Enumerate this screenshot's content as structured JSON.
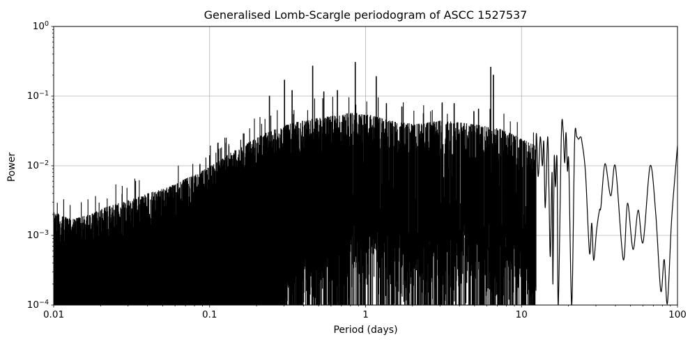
{
  "chart_data": {
    "type": "line",
    "title": "Generalised Lomb-Scargle periodogram of ASCC 1527537",
    "xlabel": "Period (days)",
    "ylabel": "Power",
    "xscale": "log",
    "yscale": "log",
    "xlim": [
      0.01,
      100
    ],
    "ylim": [
      0.0001,
      1.0
    ],
    "x_tick_labels": [
      "0.01",
      "0.1",
      "1",
      "10",
      "100"
    ],
    "x_tick_values": [
      0.01,
      0.1,
      1,
      10,
      100
    ],
    "y_tick_exponents": [
      0,
      -1,
      -2,
      -3,
      -4
    ],
    "grid": true,
    "legend": false,
    "line_color": "#000000",
    "grid_color": "#b0b0b0",
    "background_color": "#ffffff",
    "dense_region": {
      "period_range": [
        0.01,
        12.4
      ],
      "noise_floor": 0.0001,
      "upper_envelope": [
        [
          0.01,
          0.0022
        ],
        [
          0.013,
          0.0017
        ],
        [
          0.017,
          0.002
        ],
        [
          0.022,
          0.0026
        ],
        [
          0.03,
          0.0032
        ],
        [
          0.04,
          0.004
        ],
        [
          0.055,
          0.005
        ],
        [
          0.07,
          0.0065
        ],
        [
          0.09,
          0.0085
        ],
        [
          0.11,
          0.011
        ],
        [
          0.14,
          0.016
        ],
        [
          0.18,
          0.022
        ],
        [
          0.23,
          0.03
        ],
        [
          0.3,
          0.038
        ],
        [
          0.4,
          0.045
        ],
        [
          0.55,
          0.05
        ],
        [
          0.7,
          0.055
        ],
        [
          0.9,
          0.06
        ],
        [
          1.2,
          0.05
        ],
        [
          1.6,
          0.042
        ],
        [
          2.2,
          0.04
        ],
        [
          3.0,
          0.045
        ],
        [
          4.0,
          0.042
        ],
        [
          5.5,
          0.038
        ],
        [
          7.0,
          0.035
        ],
        [
          9.0,
          0.028
        ],
        [
          11.0,
          0.022
        ],
        [
          12.4,
          0.02
        ]
      ]
    },
    "peaks": [
      [
        0.113,
        0.021
      ],
      [
        0.242,
        0.1
      ],
      [
        0.302,
        0.17
      ],
      [
        0.338,
        0.12
      ],
      [
        0.458,
        0.27
      ],
      [
        0.54,
        0.115
      ],
      [
        0.66,
        0.12
      ],
      [
        0.859,
        0.305
      ],
      [
        1.17,
        0.19
      ],
      [
        1.36,
        0.078
      ],
      [
        1.71,
        0.07
      ],
      [
        2.35,
        0.056
      ],
      [
        3.1,
        0.08
      ],
      [
        3.7,
        0.078
      ],
      [
        4.95,
        0.06
      ],
      [
        5.3,
        0.065
      ],
      [
        6.35,
        0.26
      ],
      [
        6.6,
        0.2
      ]
    ],
    "tail": [
      [
        12.2,
        0.0001
      ],
      [
        12.4,
        0.025
      ],
      [
        12.8,
        0.007
      ],
      [
        13.2,
        0.026
      ],
      [
        13.6,
        0.01
      ],
      [
        13.9,
        0.022
      ],
      [
        14.2,
        0.0025
      ],
      [
        14.7,
        0.026
      ],
      [
        15.0,
        0.004
      ],
      [
        15.3,
        0.0005
      ],
      [
        15.7,
        0.008
      ],
      [
        15.9,
        0.0002
      ],
      [
        16.2,
        0.0126
      ],
      [
        16.5,
        0.005
      ],
      [
        16.9,
        0.012
      ],
      [
        17.2,
        0.0001
      ],
      [
        18.0,
        0.028
      ],
      [
        18.5,
        0.032
      ],
      [
        18.9,
        0.011
      ],
      [
        19.3,
        0.03
      ],
      [
        19.7,
        0.0085
      ],
      [
        20.1,
        0.0105
      ],
      [
        21.0,
        0.0001
      ],
      [
        21.9,
        0.022
      ],
      [
        22.6,
        0.026
      ],
      [
        23.2,
        0.024
      ],
      [
        23.9,
        0.026
      ],
      [
        24.4,
        0.022
      ],
      [
        25.7,
        0.008
      ],
      [
        27.3,
        0.00056
      ],
      [
        28.2,
        0.0015
      ],
      [
        29.0,
        0.00044
      ],
      [
        30.3,
        0.0012
      ],
      [
        31.6,
        0.0023
      ],
      [
        32.3,
        0.0026
      ],
      [
        34.3,
        0.0107
      ],
      [
        37.3,
        0.0037
      ],
      [
        40.0,
        0.0097
      ],
      [
        44.9,
        0.00045
      ],
      [
        47.8,
        0.0029
      ],
      [
        51.9,
        0.00063
      ],
      [
        55.9,
        0.0023
      ],
      [
        60.2,
        0.0008
      ],
      [
        66.8,
        0.01
      ],
      [
        72.6,
        0.002
      ],
      [
        78.1,
        0.00016
      ],
      [
        82.2,
        0.00045
      ],
      [
        86.1,
        0.000105
      ],
      [
        91.4,
        0.0015
      ],
      [
        96.3,
        0.007
      ],
      [
        100.0,
        0.0195
      ]
    ]
  }
}
